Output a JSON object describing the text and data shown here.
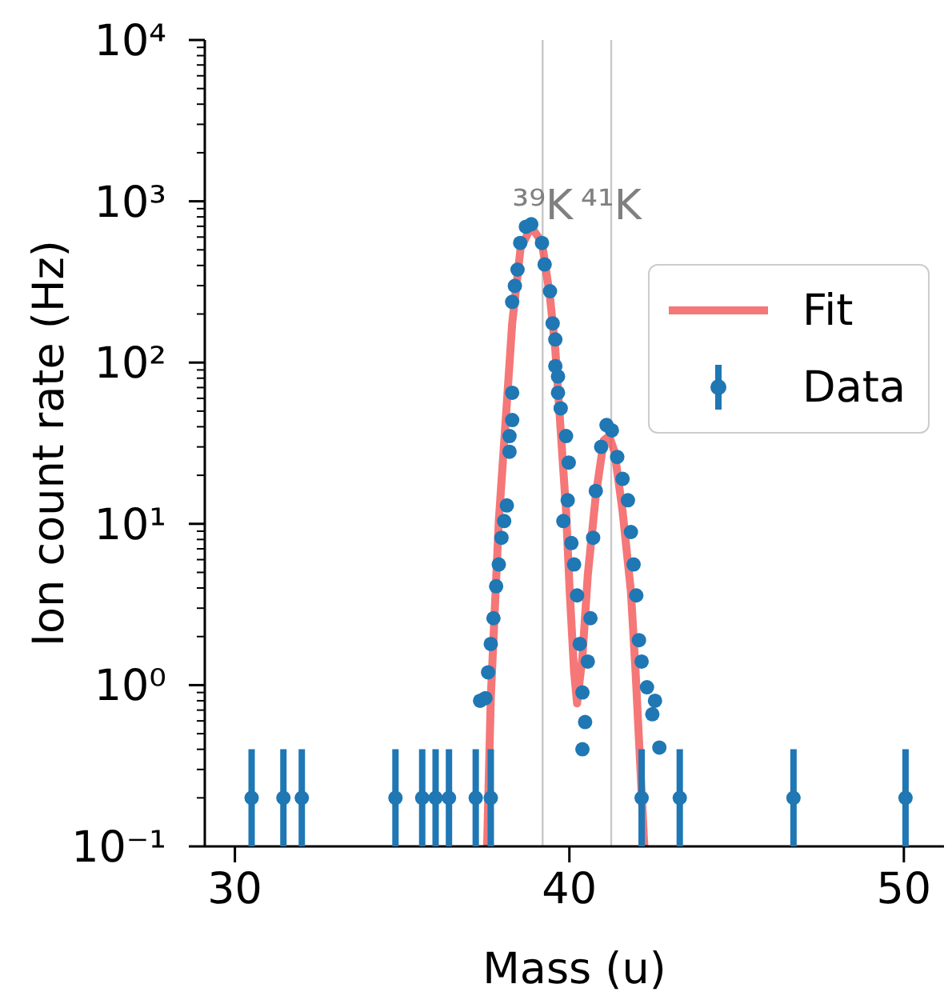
{
  "chart_data": {
    "type": "scatter",
    "xlabel": "Mass (u)",
    "ylabel": "Ion count rate (Hz)",
    "log": "y",
    "legend": "right",
    "xlim": [
      29.1,
      51.2
    ],
    "xticks": [
      30,
      40,
      50
    ],
    "ylim": [
      0.1,
      10000
    ],
    "yticks": [
      {
        "value": 0.1,
        "label": "10⁻¹"
      },
      {
        "value": 0.2,
        "label": null
      },
      {
        "value": 0.3,
        "label": null
      },
      {
        "value": 0.4,
        "label": null
      },
      {
        "value": 0.5,
        "label": null
      },
      {
        "value": 0.6,
        "label": null
      },
      {
        "value": 0.7,
        "label": null
      },
      {
        "value": 0.8,
        "label": null
      },
      {
        "value": 0.9,
        "label": null
      },
      {
        "value": 1,
        "label": "10⁰"
      },
      {
        "value": 2,
        "label": null
      },
      {
        "value": 3,
        "label": null
      },
      {
        "value": 4,
        "label": null
      },
      {
        "value": 5,
        "label": null
      },
      {
        "value": 6,
        "label": null
      },
      {
        "value": 7,
        "label": null
      },
      {
        "value": 8,
        "label": null
      },
      {
        "value": 9,
        "label": null
      },
      {
        "value": 10,
        "label": "10¹"
      },
      {
        "value": 20,
        "label": null
      },
      {
        "value": 30,
        "label": null
      },
      {
        "value": 40,
        "label": null
      },
      {
        "value": 50,
        "label": null
      },
      {
        "value": 60,
        "label": null
      },
      {
        "value": 70,
        "label": null
      },
      {
        "value": 80,
        "label": null
      },
      {
        "value": 90,
        "label": null
      },
      {
        "value": 100,
        "label": "10²"
      },
      {
        "value": 200,
        "label": null
      },
      {
        "value": 300,
        "label": null
      },
      {
        "value": 400,
        "label": null
      },
      {
        "value": 500,
        "label": null
      },
      {
        "value": 600,
        "label": null
      },
      {
        "value": 700,
        "label": null
      },
      {
        "value": 800,
        "label": null
      },
      {
        "value": 900,
        "label": null
      },
      {
        "value": 1000,
        "label": "10³"
      },
      {
        "value": 2000,
        "label": null
      },
      {
        "value": 3000,
        "label": null
      },
      {
        "value": 4000,
        "label": null
      },
      {
        "value": 5000,
        "label": null
      },
      {
        "value": 6000,
        "label": null
      },
      {
        "value": 7000,
        "label": null
      },
      {
        "value": 8000,
        "label": null
      },
      {
        "value": 9000,
        "label": null
      },
      {
        "value": 10000,
        "label": "10⁴"
      }
    ],
    "ref_lines": [
      {
        "axis": "x",
        "value": 39.2,
        "label": "³⁹K",
        "color": "#c8c8c8"
      },
      {
        "axis": "x",
        "value": 41.25,
        "label": "⁴¹K",
        "color": "#c8c8c8"
      }
    ],
    "series": [
      {
        "name": "Fit",
        "type": "line",
        "color": "#f24a4a",
        "line_style": "solid",
        "x": [
          37.54,
          37.65,
          37.89,
          38.13,
          38.29,
          38.54,
          38.86,
          39.18,
          39.42,
          39.58,
          39.74,
          39.9,
          40.01,
          40.14,
          40.23,
          40.39,
          40.55,
          40.79,
          41.03,
          41.19,
          41.35,
          41.59,
          41.84,
          41.98,
          42.24
        ],
        "values": [
          0.1,
          0.83,
          10.4,
          56,
          175,
          510,
          695,
          556,
          256,
          120,
          38,
          12.1,
          3.8,
          1.22,
          0.77,
          1.5,
          4.8,
          15,
          33,
          35,
          28,
          12,
          3.8,
          1.2,
          0.1
        ]
      },
      {
        "name": "Data",
        "color": "#1f77b4",
        "marker": "circle",
        "x": [
          30.5,
          31.45,
          32.0,
          34.8,
          35.6,
          36.0,
          36.4,
          37.2,
          37.65,
          42.16,
          43.3,
          46.7,
          50.05,
          37.33,
          40.47,
          40.39,
          42.56,
          42.69,
          38.7,
          38.86,
          38.53,
          38.45,
          39.18,
          39.26,
          38.37,
          38.29,
          39.42,
          39.5,
          39.58,
          39.58,
          39.66,
          39.66,
          39.74,
          38.29,
          38.29,
          38.21,
          38.21,
          39.9,
          39.98,
          39.95,
          39.82,
          38.13,
          38.05,
          37.97,
          40.06,
          40.14,
          37.89,
          37.81,
          37.73,
          40.23,
          40.31,
          37.65,
          37.57,
          37.49,
          40.39,
          40.55,
          40.63,
          40.71,
          40.79,
          40.95,
          41.11,
          41.27,
          41.43,
          41.59,
          41.75,
          41.84,
          41.92,
          42.0,
          42.08,
          42.16,
          42.32,
          42.48
        ],
        "values": [
          0.2,
          0.2,
          0.2,
          0.2,
          0.2,
          0.2,
          0.2,
          0.2,
          0.2,
          0.2,
          0.2,
          0.2,
          0.2,
          0.8,
          0.59,
          0.4,
          0.8,
          0.41,
          695,
          721,
          552,
          377,
          552,
          406,
          299,
          238,
          277,
          175,
          139,
          95,
          82,
          65,
          52,
          65,
          44,
          35,
          28,
          35,
          24,
          14,
          10.4,
          13,
          10.4,
          8.2,
          7.6,
          5.6,
          5.6,
          4.1,
          2.6,
          3.6,
          1.8,
          1.8,
          1.2,
          0.83,
          0.9,
          1.4,
          2.6,
          8.2,
          16,
          30,
          41,
          38,
          26,
          19,
          14,
          8.9,
          5.6,
          3.6,
          1.9,
          1.4,
          0.97,
          0.66
        ],
        "errors": [
          [
            0.1,
            0.4
          ],
          [
            0.1,
            0.4
          ],
          [
            0.1,
            0.4
          ],
          [
            0.1,
            0.4
          ],
          [
            0.1,
            0.4
          ],
          [
            0.1,
            0.4
          ],
          [
            0.1,
            0.4
          ],
          [
            0.1,
            0.4
          ],
          [
            0.1,
            0.4
          ],
          [
            0.1,
            0.4
          ],
          [
            0.1,
            0.4
          ],
          [
            0.1,
            0.4
          ],
          [
            0.1,
            0.4
          ],
          null,
          null,
          null,
          null,
          null,
          null,
          null,
          null,
          null,
          null,
          null,
          null,
          null,
          null,
          null,
          null,
          null,
          null,
          null,
          null,
          null,
          null,
          null,
          null,
          null,
          null,
          null,
          null,
          null,
          null,
          null,
          null,
          null,
          null,
          null,
          null,
          null,
          null,
          null,
          null,
          null,
          null,
          null,
          null,
          null,
          null,
          null,
          null,
          null,
          null,
          null,
          null,
          null,
          null,
          null,
          null,
          null,
          null,
          null
        ]
      }
    ]
  }
}
